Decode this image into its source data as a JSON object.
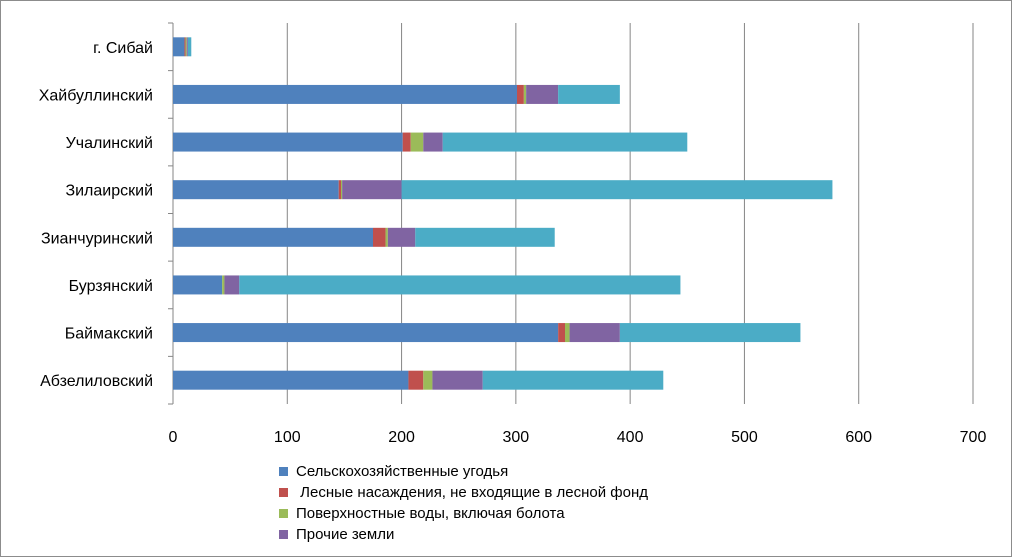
{
  "chart_data": {
    "type": "bar",
    "orientation": "horizontal",
    "stacked": true,
    "categories": [
      "Абзелиловский",
      "Баймакский",
      "Бурзянский",
      "Зианчуринский",
      "Зилаирский",
      "Учалинский",
      "Хайбуллинский",
      "г. Сибай"
    ],
    "series": [
      {
        "name": "Сельскохозяйственные угодья",
        "color": "#4f81bd",
        "values": [
          206,
          337,
          43,
          175,
          145,
          201,
          301,
          10
        ]
      },
      {
        "name": " Лесные насаждения, не входящие в лесной фонд",
        "color": "#c0504d",
        "values": [
          13,
          6,
          0,
          11,
          2,
          7,
          6,
          1
        ]
      },
      {
        "name": "Поверхностные воды, включая болота",
        "color": "#9bbb59",
        "values": [
          8,
          4,
          2,
          2,
          1,
          11,
          2,
          1
        ]
      },
      {
        "name": "Прочие земли",
        "color": "#8064a2",
        "values": [
          44,
          44,
          13,
          24,
          52,
          17,
          28,
          1
        ]
      },
      {
        "name": "",
        "color": "#4bacc6",
        "values": [
          158,
          158,
          386,
          122,
          377,
          214,
          54,
          3
        ]
      }
    ],
    "xlim": [
      0,
      700
    ],
    "xticks": [
      "0",
      "100",
      "200",
      "300",
      "400",
      "500",
      "600",
      "700"
    ],
    "grid": true,
    "legend_position": "bottom",
    "title": "",
    "xlabel": "",
    "ylabel": ""
  }
}
